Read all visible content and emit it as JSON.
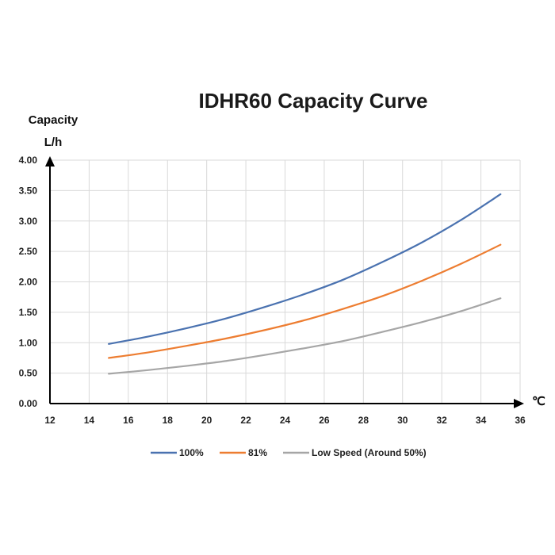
{
  "chart_data": {
    "type": "line",
    "title": "IDHR60  Capacity Curve",
    "ylabel_line1": "Capacity",
    "ylabel_line2": "L/h",
    "xlabel": "℃",
    "xlim": [
      12,
      36
    ],
    "ylim": [
      0,
      4
    ],
    "x_ticks": [
      "12",
      "14",
      "16",
      "18",
      "20",
      "22",
      "24",
      "26",
      "28",
      "30",
      "32",
      "34",
      "36"
    ],
    "y_ticks": [
      "0.00",
      "0.50",
      "1.00",
      "1.50",
      "2.00",
      "2.50",
      "3.00",
      "3.50",
      "4.00"
    ],
    "grid": true,
    "legend_position": "bottom",
    "x": [
      15,
      17,
      19,
      21,
      23,
      25,
      27,
      29,
      31,
      33,
      35
    ],
    "series": [
      {
        "name": "100%",
        "color": "#4a72b0",
        "values": [
          0.98,
          1.1,
          1.24,
          1.4,
          1.59,
          1.8,
          2.04,
          2.33,
          2.65,
          3.02,
          3.44
        ]
      },
      {
        "name": "81%",
        "color": "#ed7d31",
        "values": [
          0.75,
          0.84,
          0.95,
          1.07,
          1.21,
          1.37,
          1.56,
          1.77,
          2.02,
          2.3,
          2.61
        ]
      },
      {
        "name": "Low Speed (Around 50%)",
        "color": "#a6a6a6",
        "values": [
          0.49,
          0.55,
          0.62,
          0.7,
          0.8,
          0.91,
          1.03,
          1.18,
          1.34,
          1.52,
          1.73
        ]
      }
    ]
  }
}
